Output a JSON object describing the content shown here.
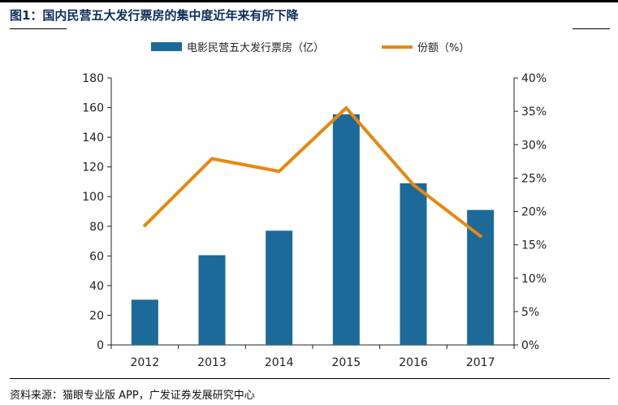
{
  "figure": {
    "title": "图1：国内民营五大发行票房的集中度近年来有所下降",
    "source": "资料来源：猫眼专业版 APP，广发证券发展研究中心"
  },
  "colors": {
    "bar": "#1b6a99",
    "line": "#e8870e",
    "title": "#0b2e5c",
    "axis": "#222222"
  },
  "chart_data": {
    "type": "bar",
    "title": "",
    "xlabel": "",
    "ylabel": "",
    "categories": [
      "2012",
      "2013",
      "2014",
      "2015",
      "2016",
      "2017"
    ],
    "series": [
      {
        "name": "电影民营五大发行票房（亿）",
        "type": "bar",
        "axis": "left",
        "values": [
          30.5,
          60.5,
          77,
          155.5,
          109,
          91
        ]
      },
      {
        "name": "份额（%）",
        "type": "line",
        "axis": "right",
        "values": [
          0.179,
          0.279,
          0.26,
          0.355,
          0.24,
          0.163
        ]
      }
    ],
    "ylim": [
      0,
      180
    ],
    "y_ticks": [
      0,
      20,
      40,
      60,
      80,
      100,
      120,
      140,
      160,
      180
    ],
    "y_tick_labels": [
      "0",
      "20",
      "40",
      "60",
      "80",
      "100",
      "120",
      "140",
      "160",
      "180"
    ],
    "y2lim": [
      0,
      0.4
    ],
    "y2_ticks": [
      0,
      0.05,
      0.1,
      0.15,
      0.2,
      0.25,
      0.3,
      0.35,
      0.4
    ],
    "y2_tick_labels": [
      "0%",
      "5%",
      "10%",
      "15%",
      "20%",
      "25%",
      "30%",
      "35%",
      "40%"
    ],
    "grid": false,
    "legend_position": "top"
  }
}
